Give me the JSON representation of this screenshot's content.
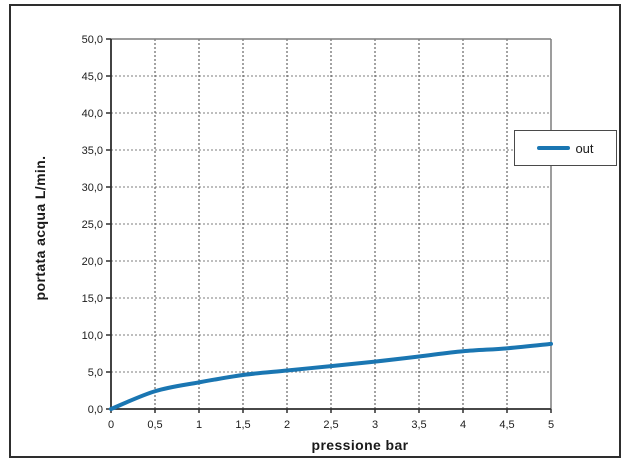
{
  "figure": {
    "background": "#ffffff",
    "border_color": "#2e2e2e"
  },
  "chart_data": {
    "type": "line",
    "title": "",
    "xlabel": "pressione bar",
    "ylabel": "portata acqua L/min.",
    "x": [
      0,
      0.5,
      1,
      1.5,
      2,
      2.5,
      3,
      3.5,
      4,
      4.5,
      5
    ],
    "series": [
      {
        "name": "out",
        "color": "#1a76b2",
        "values": [
          0,
          2.4,
          3.6,
          4.6,
          5.2,
          5.8,
          6.4,
          7.1,
          7.8,
          8.2,
          8.8
        ]
      }
    ],
    "xlim": [
      0,
      5
    ],
    "ylim": [
      0,
      50
    ],
    "x_ticks": {
      "values": [
        0,
        0.5,
        1,
        1.5,
        2,
        2.5,
        3,
        3.5,
        4,
        4.5,
        5
      ],
      "labels": [
        "0",
        "0,5",
        "1",
        "1,5",
        "2",
        "2,5",
        "3",
        "3,5",
        "4",
        "4,5",
        "5"
      ]
    },
    "y_ticks": {
      "values": [
        0,
        5,
        10,
        15,
        20,
        25,
        30,
        35,
        40,
        45,
        50
      ],
      "labels": [
        "0,0",
        "5,0",
        "10,0",
        "15,0",
        "20,0",
        "25,0",
        "30,0",
        "35,0",
        "40,0",
        "45,0",
        "50,0"
      ]
    },
    "grid": "dashed",
    "grid_color_vertical": "#474747",
    "grid_color_horizontal": "#7d7d7d",
    "axis_color": "#2e2e2e",
    "plot_border_color": "#7d7d7d",
    "tick_label_color": "#1c1c1c",
    "legend": {
      "position": "right",
      "entries": [
        "out"
      ]
    }
  }
}
